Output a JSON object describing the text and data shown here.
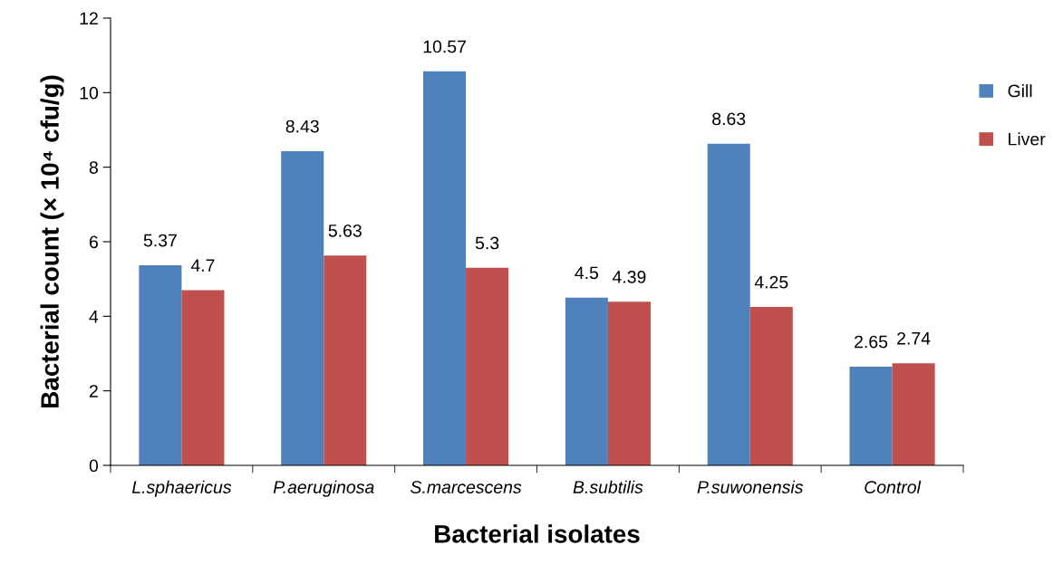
{
  "chart_data": {
    "type": "bar",
    "xlabel": "Bacterial isolates",
    "ylabel": "Bacterial count (× 10⁴ cfu/g)",
    "categories": [
      "L.sphaericus",
      "P.aeruginosa",
      "S.marcescens",
      "B.subtilis",
      "P.suwonensis",
      "Control"
    ],
    "series": [
      {
        "name": "Gill",
        "color": "#4f81bd",
        "values": [
          5.37,
          8.43,
          10.57,
          4.5,
          8.63,
          2.65
        ]
      },
      {
        "name": "Liver",
        "color": "#c0504d",
        "values": [
          4.7,
          5.63,
          5.3,
          4.39,
          4.25,
          2.74
        ]
      }
    ],
    "ylim": [
      0,
      12
    ],
    "yticks": [
      0,
      2,
      4,
      6,
      8,
      10,
      12
    ],
    "data_labels": true,
    "legend": "right",
    "grid": false
  }
}
